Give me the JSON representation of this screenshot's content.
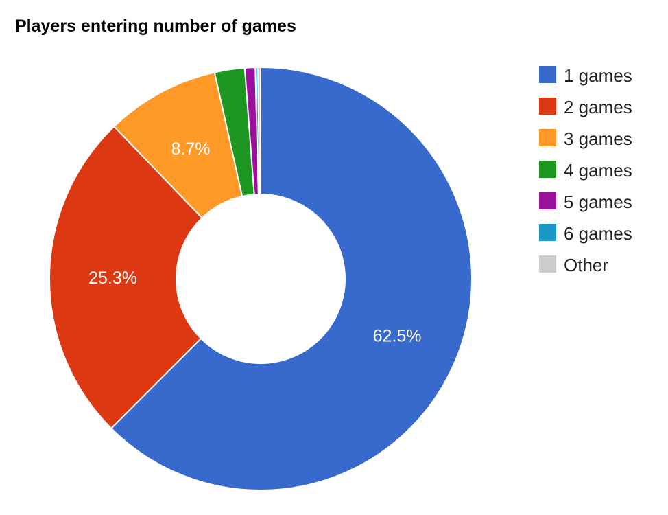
{
  "chart_data": {
    "type": "pie",
    "subtype": "donut",
    "title": "Players entering number of games",
    "categories": [
      "1 games",
      "2 games",
      "3 games",
      "4 games",
      "5 games",
      "6 games",
      "Other"
    ],
    "values": [
      62.5,
      25.3,
      8.7,
      2.3,
      0.8,
      0.2,
      0.2
    ],
    "slice_labels": [
      "62.5%",
      "25.3%",
      "8.7%",
      "",
      "",
      "",
      ""
    ],
    "colors": [
      "#3869cc",
      "#dc3912",
      "#ff9a29",
      "#1e9622",
      "#9a109a",
      "#1998c6",
      "#cccccc"
    ],
    "legend": {
      "position": "right",
      "entries": [
        "1 games",
        "2 games",
        "3 games",
        "4 games",
        "5 games",
        "6 games",
        "Other"
      ]
    }
  }
}
